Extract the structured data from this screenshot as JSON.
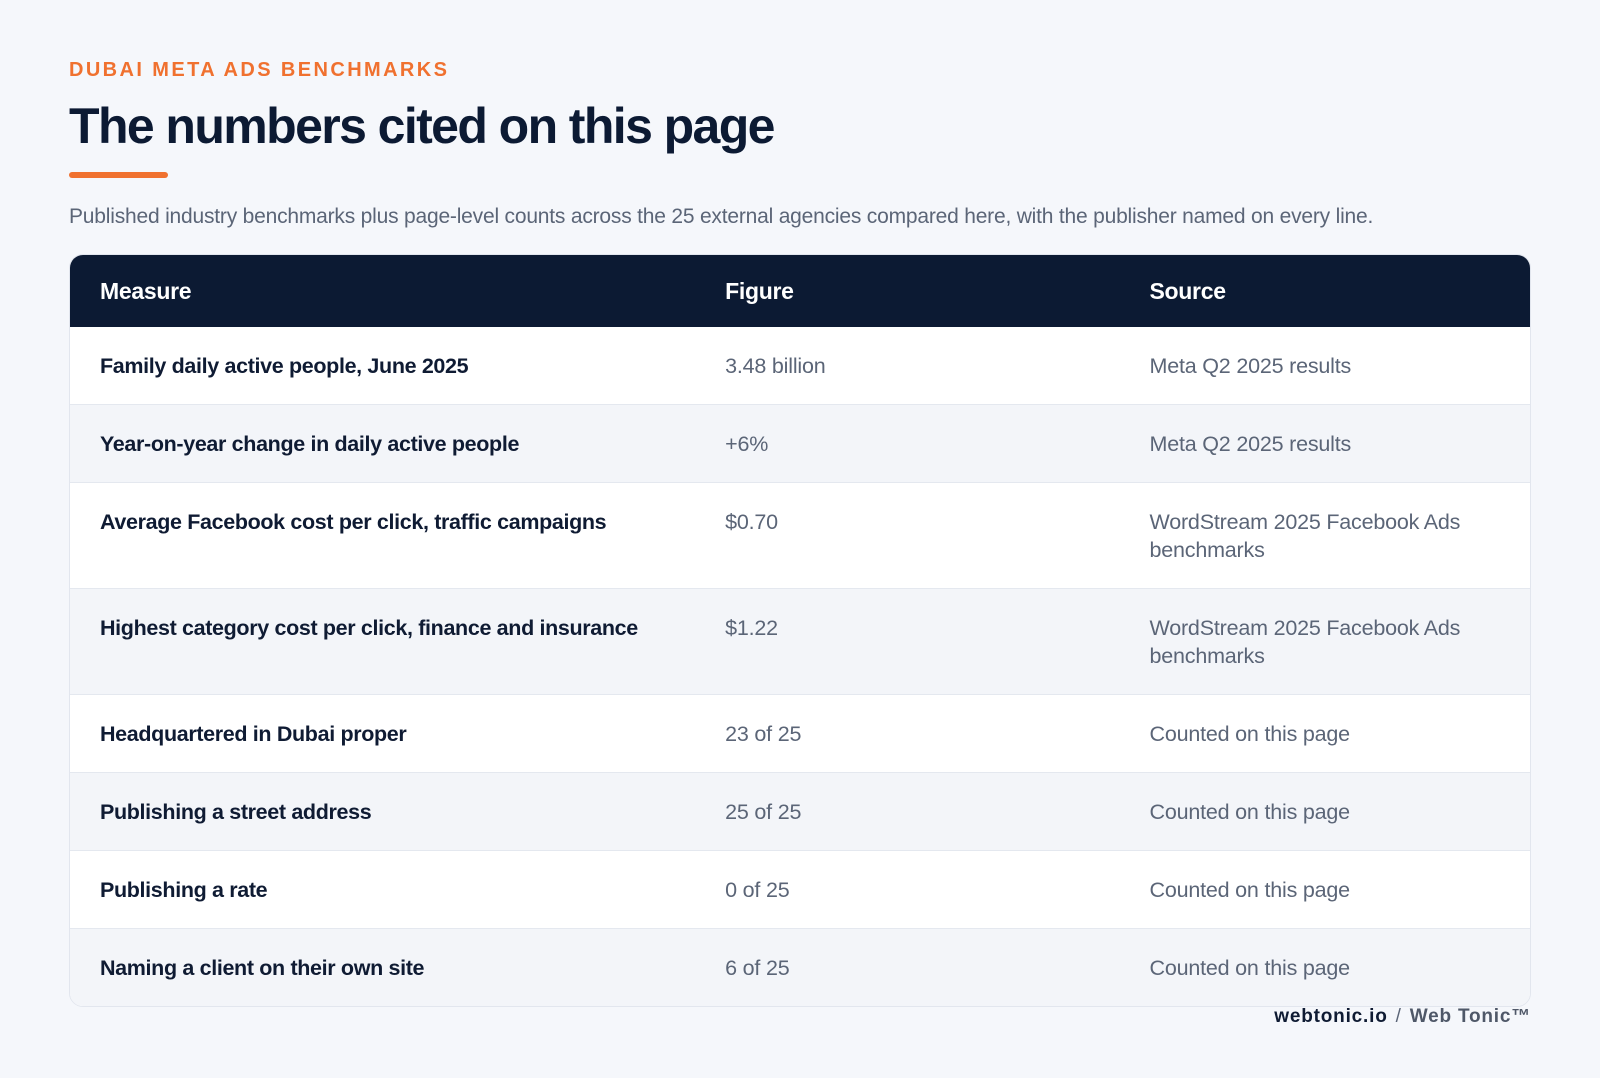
{
  "header": {
    "eyebrow": "DUBAI META ADS BENCHMARKS",
    "title": "The numbers cited on this page",
    "subtitle": "Published industry benchmarks plus page-level counts across the 25 external agencies compared here, with the publisher named on every line."
  },
  "colors": {
    "accent": "#f0712f",
    "table_header_bg": "#0c1a33",
    "row_alt_bg": "#f3f5f9",
    "page_bg": "#f5f7fb"
  },
  "table": {
    "columns": [
      "Measure",
      "Figure",
      "Source"
    ],
    "rows": [
      {
        "measure": "Family daily active people, June 2025",
        "figure": "3.48 billion",
        "source": "Meta Q2 2025 results"
      },
      {
        "measure": "Year-on-year change in daily active people",
        "figure": "+6%",
        "source": "Meta Q2 2025 results"
      },
      {
        "measure": "Average Facebook cost per click, traffic campaigns",
        "figure": "$0.70",
        "source": "WordStream 2025 Facebook Ads benchmarks"
      },
      {
        "measure": "Highest category cost per click, finance and insurance",
        "figure": "$1.22",
        "source": "WordStream 2025 Facebook Ads benchmarks"
      },
      {
        "measure": "Headquartered in Dubai proper",
        "figure": "23 of 25",
        "source": "Counted on this page"
      },
      {
        "measure": "Publishing a street address",
        "figure": "25 of 25",
        "source": "Counted on this page"
      },
      {
        "measure": "Publishing a rate",
        "figure": "0 of 25",
        "source": "Counted on this page"
      },
      {
        "measure": "Naming a client on their own site",
        "figure": "6 of 25",
        "source": "Counted on this page"
      }
    ]
  },
  "footer": {
    "domain": "webtonic.io",
    "separator": "/",
    "brand": "Web Tonic™"
  }
}
